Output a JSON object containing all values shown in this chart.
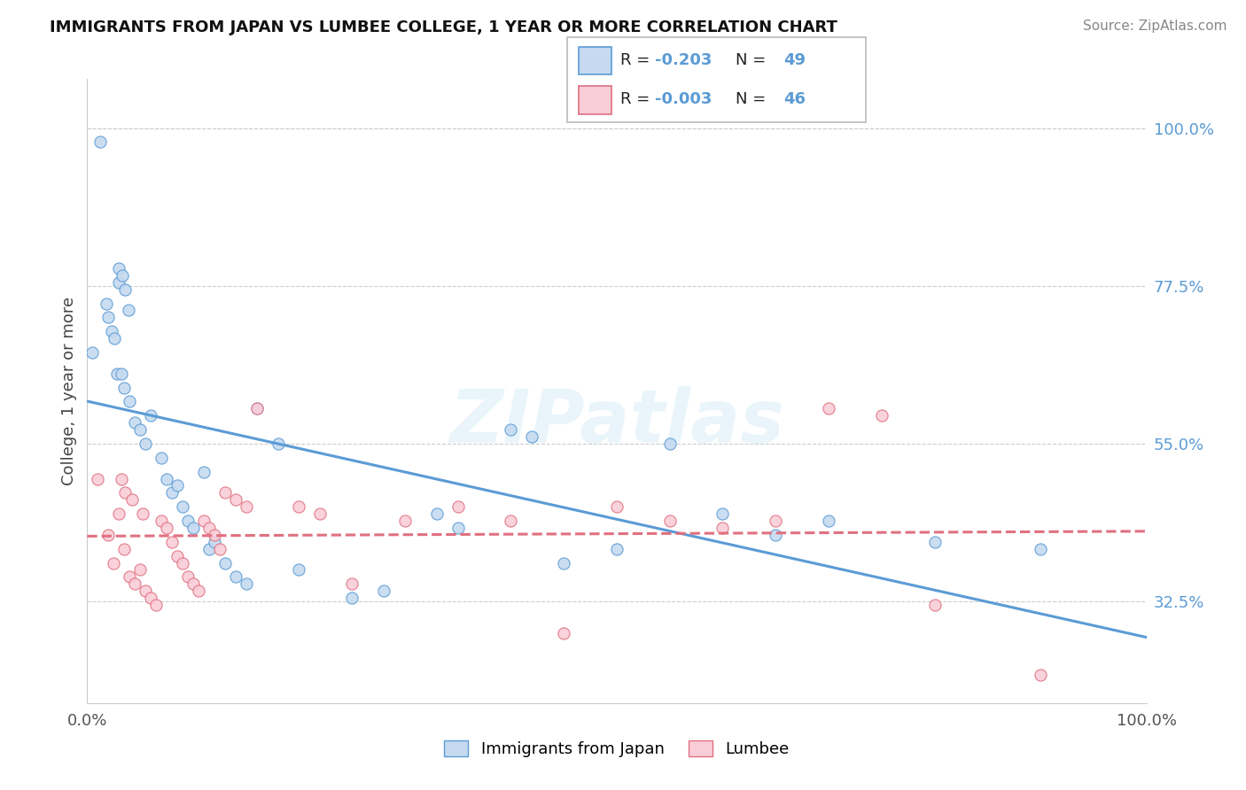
{
  "title": "IMMIGRANTS FROM JAPAN VS LUMBEE COLLEGE, 1 YEAR OR MORE CORRELATION CHART",
  "source": "Source: ZipAtlas.com",
  "ylabel": "College, 1 year or more",
  "color_blue_fill": "#c5daf0",
  "color_blue_edge": "#5b9bd5",
  "color_pink_fill": "#f9cdd8",
  "color_pink_edge": "#e07080",
  "line_blue": "#5b9bd5",
  "line_pink": "#e07080",
  "japan_points_x": [
    0.5,
    1.2,
    1.8,
    2.0,
    2.3,
    2.6,
    2.8,
    3.0,
    3.2,
    3.5,
    4.0,
    4.5,
    5.0,
    5.5,
    6.0,
    7.0,
    7.5,
    8.0,
    8.5,
    9.0,
    9.5,
    10.0,
    11.0,
    11.5,
    12.0,
    13.0,
    14.0,
    15.0,
    16.0,
    18.0,
    20.0,
    25.0,
    28.0,
    33.0,
    35.0,
    40.0,
    42.0,
    45.0,
    50.0,
    55.0,
    60.0,
    65.0,
    70.0,
    80.0,
    90.0,
    3.0,
    3.3,
    3.6,
    3.9
  ],
  "japan_points_y": [
    68,
    98,
    75,
    73,
    71,
    70,
    65,
    78,
    65,
    63,
    61,
    58,
    57,
    55,
    59,
    53,
    50,
    48,
    49,
    46,
    44,
    43,
    51,
    40,
    41,
    38,
    36,
    35,
    60,
    55,
    37,
    33,
    34,
    45,
    43,
    57,
    56,
    38,
    40,
    55,
    45,
    42,
    44,
    41,
    40,
    80,
    79,
    77,
    74
  ],
  "lumbee_points_x": [
    1.0,
    2.0,
    2.5,
    3.0,
    3.5,
    4.0,
    4.5,
    5.0,
    5.5,
    6.0,
    6.5,
    7.0,
    7.5,
    8.0,
    8.5,
    9.0,
    9.5,
    10.0,
    10.5,
    11.0,
    11.5,
    12.0,
    12.5,
    13.0,
    14.0,
    15.0,
    16.0,
    20.0,
    22.0,
    25.0,
    30.0,
    35.0,
    40.0,
    45.0,
    50.0,
    55.0,
    60.0,
    65.0,
    70.0,
    75.0,
    80.0,
    90.0,
    3.2,
    3.6,
    4.2,
    5.2
  ],
  "lumbee_points_y": [
    50,
    42,
    38,
    45,
    40,
    36,
    35,
    37,
    34,
    33,
    32,
    44,
    43,
    41,
    39,
    38,
    36,
    35,
    34,
    44,
    43,
    42,
    40,
    48,
    47,
    46,
    60,
    46,
    45,
    35,
    44,
    46,
    44,
    28,
    46,
    44,
    43,
    44,
    60,
    59,
    32,
    22,
    50,
    48,
    47,
    45
  ],
  "xmin": 0,
  "xmax": 100,
  "ymin": 18,
  "ymax": 107,
  "yticks": [
    32.5,
    55.0,
    77.5,
    100.0
  ],
  "ytick_labels": [
    "32.5%",
    "55.0%",
    "77.5%",
    "100.0%"
  ],
  "xtick_left": "0.0%",
  "xtick_right": "100.0%",
  "watermark": "ZIPatlas",
  "legend_r1_prefix": "R = ",
  "legend_r1_val": "-0.203",
  "legend_n1_prefix": "N = ",
  "legend_n1_val": "49",
  "legend_r2_prefix": "R = ",
  "legend_r2_val": "-0.003",
  "legend_n2_prefix": "N = ",
  "legend_n2_val": "46",
  "bottom_label1": "Immigrants from Japan",
  "bottom_label2": "Lumbee",
  "title_fontsize": 13,
  "tick_fontsize": 13,
  "legend_fontsize": 13
}
